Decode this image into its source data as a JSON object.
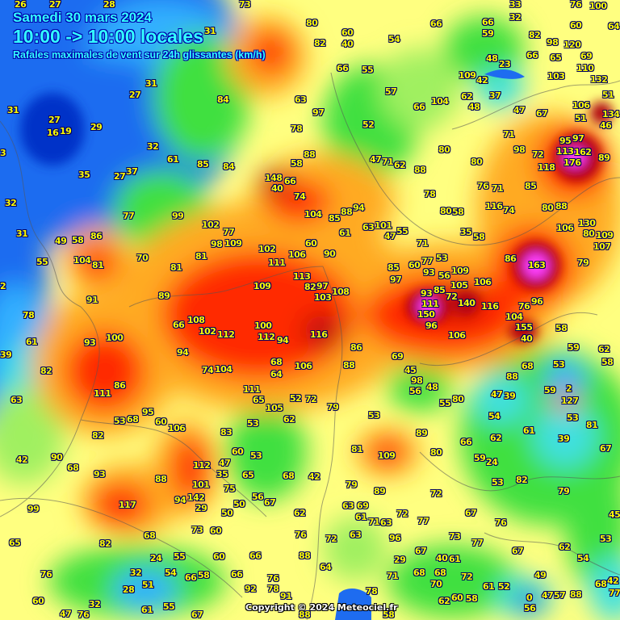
{
  "header": {
    "date": "Samedi 30 mars 2024",
    "time_range": "10:00 -> 10:00 locales",
    "subtitle": "Rafales maximales de vent sur 24h glissantes (km/h)"
  },
  "copyright": "Copyright © 2024 Meteociel.fr",
  "unit": "km/h",
  "palette": {
    "ocean_blue": "#1e6cf0",
    "deep_blue": "#0030c8",
    "light_blue": "#30b0ff",
    "cyan": "#40e0e0",
    "green": "#40e040",
    "light_green": "#a0f060",
    "yellow": "#ffff70",
    "orange": "#ffaa20",
    "red": "#ff2a00",
    "dark_red": "#b00010",
    "magenta": "#ff40ff",
    "label": "#ffff00"
  },
  "stations": [
    26,
    27,
    28,
    73,
    33,
    76,
    100,
    32,
    66,
    59,
    82,
    98,
    120,
    64,
    60,
    31,
    80,
    60,
    40,
    54,
    66,
    82,
    48,
    23,
    66,
    65,
    69,
    110,
    132,
    31,
    27,
    66,
    55,
    109,
    42,
    62,
    37,
    103,
    51,
    63,
    57,
    104,
    48,
    47,
    67,
    106,
    51,
    134,
    46,
    31,
    27,
    16,
    19,
    29,
    84,
    97,
    52,
    66,
    71,
    97,
    95,
    32,
    78,
    113,
    162,
    176,
    89,
    98,
    72,
    118,
    3,
    61,
    85,
    84,
    88,
    58,
    47,
    71,
    62,
    80,
    80,
    27,
    35,
    37,
    148,
    40,
    66,
    88,
    76,
    71,
    85,
    32,
    74,
    78,
    116,
    74,
    80,
    88,
    77,
    99,
    102,
    104,
    85,
    88,
    94,
    101,
    55,
    47,
    63,
    80,
    58,
    130,
    80,
    109,
    106,
    31,
    49,
    58,
    86,
    77,
    98,
    109,
    60,
    61,
    71,
    35,
    58,
    107,
    102,
    106,
    90,
    53,
    70,
    104,
    81,
    81,
    81,
    111,
    55,
    85,
    97,
    60,
    77,
    93,
    109,
    56,
    163,
    86,
    79,
    2,
    113,
    82,
    97,
    108,
    109,
    103,
    106,
    105,
    93,
    85,
    72,
    111,
    150,
    140,
    116,
    76,
    96,
    104,
    155,
    40,
    91,
    89,
    78,
    100,
    108,
    102,
    112,
    100,
    112,
    94,
    116,
    96,
    106,
    58,
    86,
    93,
    66,
    61,
    39,
    69,
    59,
    62,
    94,
    82,
    74,
    104,
    68,
    64,
    106,
    88,
    45,
    98,
    56,
    48,
    88,
    68,
    53,
    58,
    2,
    59,
    86,
    111,
    111,
    65,
    52,
    72,
    79,
    55,
    80,
    47,
    39,
    127,
    63,
    95,
    53,
    68,
    60,
    106,
    105,
    62,
    53,
    53,
    54,
    53,
    81,
    82,
    83,
    61,
    39,
    60,
    53,
    81,
    109,
    89,
    80,
    66,
    59,
    24,
    62,
    67,
    42,
    90,
    68,
    112,
    47,
    35,
    93,
    88,
    68,
    42,
    65,
    53,
    82,
    79,
    101,
    75,
    79,
    89,
    117,
    94,
    142,
    29,
    56,
    67,
    72,
    99,
    50,
    63,
    69,
    61,
    72,
    50,
    62,
    67,
    76,
    45,
    68,
    73,
    60,
    63,
    71,
    63,
    77,
    96,
    73,
    77,
    67,
    62,
    53,
    65,
    82,
    76,
    72,
    24,
    55,
    60,
    66,
    29,
    67,
    40,
    61,
    54,
    76,
    32,
    54,
    66,
    58,
    66,
    88,
    76,
    64,
    49,
    68,
    42,
    51,
    68,
    68,
    72,
    28,
    92,
    78,
    71,
    70,
    61,
    52,
    77,
    60,
    32,
    55,
    0,
    56,
    47,
    57,
    88,
    78,
    91,
    58,
    62,
    60,
    47,
    76,
    61,
    67,
    88,
    58
  ]
}
